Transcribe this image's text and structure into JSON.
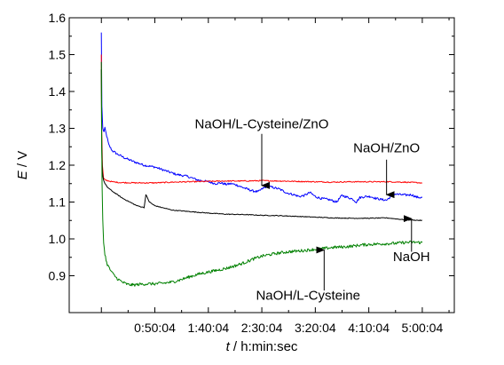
{
  "chart_data": {
    "type": "line",
    "title": "",
    "xlabel": {
      "var": "t",
      "rest": " / h:min:sec"
    },
    "ylabel": {
      "var": "E",
      "rest": " / V"
    },
    "xlim": [
      -1800,
      19800
    ],
    "ylim": [
      0.8,
      1.6
    ],
    "x_ticks": [
      {
        "value": 3004,
        "label": "0:50:04"
      },
      {
        "value": 6004,
        "label": "1:40:04"
      },
      {
        "value": 9004,
        "label": "2:30:04"
      },
      {
        "value": 12004,
        "label": "3:20:04"
      },
      {
        "value": 15004,
        "label": "4:10:04"
      },
      {
        "value": 18004,
        "label": "5:00:04"
      }
    ],
    "y_ticks": [
      {
        "value": 0.9,
        "label": "0.9"
      },
      {
        "value": 1.0,
        "label": "1.0"
      },
      {
        "value": 1.1,
        "label": "1.1"
      },
      {
        "value": 1.2,
        "label": "1.2"
      },
      {
        "value": 1.3,
        "label": "1.3"
      },
      {
        "value": 1.4,
        "label": "1.4"
      },
      {
        "value": 1.5,
        "label": "1.5"
      },
      {
        "value": 1.6,
        "label": "1.6"
      }
    ],
    "grid": false,
    "series": [
      {
        "name": "NaOH/L-Cysteine/ZnO",
        "color": "#0000ff",
        "noise": 0.003,
        "x": [
          0,
          30,
          80,
          150,
          200,
          300,
          420,
          600,
          900,
          1300,
          1800,
          2400,
          3000,
          3600,
          4200,
          4800,
          5400,
          6000,
          6400,
          6700,
          7000,
          7300,
          7600,
          7900,
          8200,
          8500,
          8800,
          9000,
          9300,
          9600,
          10000,
          10400,
          10800,
          11100,
          11400,
          11700,
          12000,
          12300,
          12600,
          12900,
          13200,
          13500,
          13800,
          14100,
          14300,
          14500,
          14800,
          15100,
          15400,
          15700,
          16000,
          16400,
          16800,
          17100,
          17400,
          17700,
          18000
        ],
        "y": [
          1.56,
          1.36,
          1.3,
          1.29,
          1.3,
          1.28,
          1.255,
          1.24,
          1.23,
          1.22,
          1.21,
          1.2,
          1.195,
          1.185,
          1.175,
          1.17,
          1.16,
          1.155,
          1.15,
          1.152,
          1.148,
          1.15,
          1.146,
          1.14,
          1.135,
          1.13,
          1.128,
          1.135,
          1.143,
          1.14,
          1.135,
          1.125,
          1.12,
          1.115,
          1.118,
          1.126,
          1.115,
          1.11,
          1.108,
          1.105,
          1.1,
          1.118,
          1.113,
          1.108,
          1.1,
          1.112,
          1.115,
          1.115,
          1.11,
          1.107,
          1.105,
          1.122,
          1.12,
          1.119,
          1.12,
          1.113,
          1.112
        ]
      },
      {
        "name": "NaOH/ZnO",
        "color": "#ff0000",
        "noise": 0.0015,
        "x": [
          0,
          20,
          60,
          120,
          200,
          350,
          600,
          1000,
          2000,
          3000,
          4000,
          5000,
          6000,
          7000,
          8000,
          9000,
          10000,
          11000,
          12000,
          13000,
          14000,
          15000,
          16000,
          17000,
          18000
        ],
        "y": [
          1.5,
          1.3,
          1.2,
          1.165,
          1.16,
          1.158,
          1.155,
          1.153,
          1.152,
          1.152,
          1.154,
          1.155,
          1.156,
          1.157,
          1.157,
          1.158,
          1.157,
          1.156,
          1.155,
          1.154,
          1.155,
          1.155,
          1.155,
          1.154,
          1.152
        ]
      },
      {
        "name": "NaOH",
        "color": "#000000",
        "noise": 0.001,
        "x": [
          0,
          20,
          60,
          120,
          200,
          350,
          600,
          900,
          1200,
          1600,
          2000,
          2400,
          2500,
          2700,
          3000,
          3400,
          4000,
          5000,
          6000,
          7000,
          8000,
          9000,
          10000,
          11000,
          12000,
          13000,
          14000,
          15000,
          16000,
          17000,
          18000
        ],
        "y": [
          1.46,
          1.25,
          1.18,
          1.16,
          1.15,
          1.14,
          1.13,
          1.12,
          1.11,
          1.1,
          1.09,
          1.085,
          1.12,
          1.1,
          1.09,
          1.085,
          1.078,
          1.074,
          1.07,
          1.067,
          1.066,
          1.064,
          1.063,
          1.061,
          1.059,
          1.057,
          1.056,
          1.056,
          1.057,
          1.052,
          1.05
        ]
      },
      {
        "name": "NaOH/L-Cysteine",
        "color": "#008000",
        "noise": 0.004,
        "x": [
          0,
          15,
          40,
          80,
          130,
          200,
          300,
          450,
          650,
          900,
          1200,
          1500,
          1800,
          2200,
          2600,
          3000,
          3500,
          4000,
          4500,
          5000,
          5500,
          6000,
          6500,
          7000,
          7500,
          8000,
          8500,
          9000,
          9500,
          10000,
          10500,
          11000,
          11500,
          12000,
          12500,
          13000,
          13500,
          14000,
          14500,
          15000,
          15500,
          16000,
          16500,
          17000,
          17500,
          18000
        ],
        "y": [
          1.48,
          1.3,
          1.15,
          1.05,
          0.99,
          0.96,
          0.935,
          0.92,
          0.905,
          0.892,
          0.882,
          0.876,
          0.875,
          0.877,
          0.878,
          0.878,
          0.88,
          0.883,
          0.89,
          0.898,
          0.905,
          0.91,
          0.915,
          0.92,
          0.927,
          0.935,
          0.945,
          0.953,
          0.958,
          0.962,
          0.965,
          0.967,
          0.969,
          0.972,
          0.974,
          0.977,
          0.978,
          0.98,
          0.983,
          0.985,
          0.986,
          0.987,
          0.988,
          0.99,
          0.991,
          0.99
        ]
      }
    ],
    "annotations": [
      {
        "name": "NaOH/L-Cysteine/ZnO",
        "text_x": 9000,
        "text_y": 1.3,
        "arrow_from": [
          9000,
          1.285
        ],
        "arrow_to": [
          9000,
          1.145
        ]
      },
      {
        "name": "NaOH/ZnO",
        "text_x": 16000,
        "text_y": 1.235,
        "arrow_from": [
          16000,
          1.215
        ],
        "arrow_to": [
          16000,
          1.12
        ]
      },
      {
        "name": "NaOH",
        "text_x": 17400,
        "text_y": 0.94,
        "arrow_from": [
          17400,
          0.965
        ],
        "arrow_to": [
          17400,
          1.055
        ]
      },
      {
        "name": "NaOH/L-Cysteine",
        "text_x": 11600,
        "text_y": 0.835,
        "arrow_from": [
          12500,
          0.86
        ],
        "arrow_to": [
          12500,
          0.97
        ]
      }
    ]
  }
}
